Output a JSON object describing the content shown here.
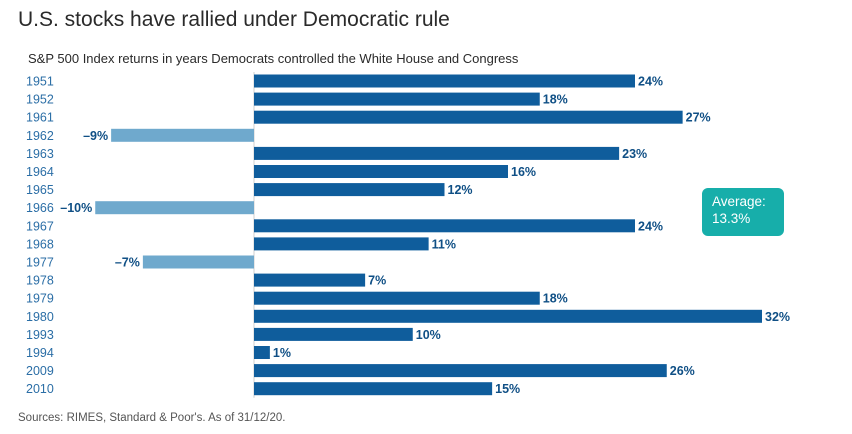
{
  "title": "U.S. stocks have rallied under Democratic rule",
  "subtitle": "S&P 500 Index returns in years Democrats controlled the White House and Congress",
  "source": "Sources: RIMES, Standard & Poor's. As of 31/12/20.",
  "average": {
    "label": "Average:",
    "value": "13.3%"
  },
  "colors": {
    "positive": "#0f5d9c",
    "negative": "#6fa9cd",
    "year_label": "#2b6ea6",
    "value_label": "#0f4f85",
    "axis": "#cfcfcf",
    "average_bg": "#17aeaa"
  },
  "chart_data": {
    "type": "bar",
    "orientation": "horizontal",
    "title": "U.S. stocks have rallied under Democratic rule",
    "subtitle": "S&P 500 Index returns in years Democrats controlled the White House and Congress",
    "xlabel": "",
    "ylabel": "",
    "unit": "%",
    "xlim": [
      -10,
      32
    ],
    "categories": [
      "1951",
      "1952",
      "1961",
      "1962",
      "1963",
      "1964",
      "1965",
      "1966",
      "1967",
      "1968",
      "1977",
      "1978",
      "1979",
      "1980",
      "1993",
      "1994",
      "2009",
      "2010"
    ],
    "values": [
      24,
      18,
      27,
      -9,
      23,
      16,
      12,
      -10,
      24,
      11,
      -7,
      7,
      18,
      32,
      10,
      1,
      26,
      15
    ],
    "labels": [
      "24%",
      "18%",
      "27%",
      "–9%",
      "23%",
      "16%",
      "12%",
      "–10%",
      "24%",
      "11%",
      "–7%",
      "7%",
      "18%",
      "32%",
      "10%",
      "1%",
      "26%",
      "15%"
    ],
    "annotation": "Average: 13.3%"
  }
}
